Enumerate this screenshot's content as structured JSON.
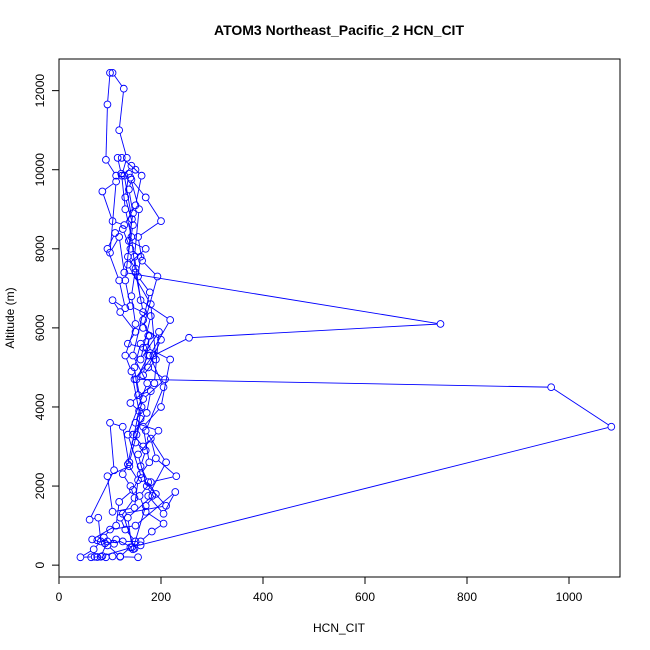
{
  "chart_data": {
    "type": "line",
    "title": "ATOM3 Northeast_Pacific_2 HCN_CIT",
    "xlabel": "HCN_CIT",
    "ylabel": "Altitude (m)",
    "xlim": [
      0,
      1100
    ],
    "ylim": [
      -300,
      12800
    ],
    "x_ticks": [
      0,
      200,
      400,
      600,
      800,
      1000
    ],
    "y_ticks": [
      0,
      2000,
      4000,
      6000,
      8000,
      10000,
      12000
    ],
    "grid": false,
    "legend": "none",
    "marker": "open-circle",
    "color": "#0000ff",
    "series": [
      {
        "points": [
          [
            155,
            200
          ],
          [
            120,
            210
          ],
          [
            105,
            220
          ],
          [
            92,
            200
          ],
          [
            75,
            205
          ],
          [
            63,
            200
          ],
          [
            82,
            210
          ],
          [
            95,
            600
          ],
          [
            112,
            650
          ],
          [
            148,
            420
          ],
          [
            125,
            1300
          ],
          [
            210,
            1500
          ],
          [
            162,
            2200
          ],
          [
            135,
            3300
          ],
          [
            173,
            4600
          ],
          [
            145,
            5300
          ],
          [
            165,
            6400
          ],
          [
            150,
            7400
          ],
          [
            142,
            8300
          ],
          [
            130,
            9000
          ],
          [
            123,
            9850
          ],
          [
            133,
            10300
          ],
          [
            118,
            11000
          ],
          [
            127,
            12050
          ],
          [
            105,
            12450
          ],
          [
            100,
            12450
          ],
          [
            95,
            11650
          ],
          [
            92,
            10250
          ],
          [
            112,
            9850
          ],
          [
            140,
            9800
          ],
          [
            157,
            9000
          ],
          [
            148,
            7800
          ],
          [
            160,
            6700
          ],
          [
            218,
            6200
          ],
          [
            178,
            5300
          ],
          [
            205,
            4500
          ],
          [
            170,
            3400
          ],
          [
            210,
            2600
          ],
          [
            175,
            1750
          ],
          [
            205,
            1300
          ],
          [
            228,
            1850
          ],
          [
            150,
            1000
          ],
          [
            100,
            900
          ],
          [
            88,
            700
          ],
          [
            75,
            630
          ],
          [
            108,
            540
          ],
          [
            95,
            500
          ],
          [
            120,
            220
          ],
          [
            140,
            450
          ],
          [
            1083,
            3500
          ],
          [
            965,
            4500
          ],
          [
            148,
            4700
          ],
          [
            185,
            5300
          ],
          [
            255,
            5750
          ],
          [
            748,
            6100
          ],
          [
            128,
            7400
          ],
          [
            118,
            8300
          ],
          [
            100,
            7900
          ],
          [
            112,
            9700
          ],
          [
            85,
            9450
          ],
          [
            105,
            8700
          ],
          [
            128,
            8600
          ],
          [
            150,
            9100
          ],
          [
            162,
            9850
          ],
          [
            142,
            10100
          ],
          [
            128,
            9850
          ],
          [
            143,
            8750
          ],
          [
            130,
            7200
          ],
          [
            140,
            6550
          ],
          [
            180,
            6300
          ],
          [
            160,
            5200
          ],
          [
            196,
            5900
          ],
          [
            187,
            4600
          ],
          [
            140,
            4100
          ],
          [
            157,
            3900
          ],
          [
            135,
            2550
          ],
          [
            155,
            2150
          ],
          [
            148,
            1450
          ],
          [
            105,
            1350
          ],
          [
            95,
            2250
          ],
          [
            138,
            2500
          ],
          [
            125,
            3500
          ],
          [
            100,
            3600
          ],
          [
            108,
            2400
          ],
          [
            60,
            1150
          ],
          [
            77,
            1200
          ],
          [
            82,
            600
          ],
          [
            68,
            400
          ],
          [
            42,
            200
          ],
          [
            70,
            210
          ],
          [
            85,
            230
          ],
          [
            143,
            450
          ],
          [
            135,
            1200
          ],
          [
            183,
            1750
          ],
          [
            172,
            2000
          ],
          [
            155,
            2800
          ],
          [
            195,
            3400
          ],
          [
            150,
            3600
          ],
          [
            165,
            4200
          ],
          [
            208,
            4700
          ],
          [
            175,
            5000
          ],
          [
            200,
            5700
          ],
          [
            165,
            6000
          ],
          [
            193,
            7300
          ],
          [
            163,
            7700
          ],
          [
            155,
            8300
          ],
          [
            200,
            8700
          ],
          [
            170,
            9300
          ],
          [
            142,
            9750
          ],
          [
            137,
            9500
          ],
          [
            145,
            8900
          ],
          [
            137,
            8200
          ],
          [
            170,
            8000
          ],
          [
            135,
            7600
          ],
          [
            180,
            6600
          ],
          [
            190,
            5200
          ],
          [
            165,
            4800
          ],
          [
            178,
            5800
          ],
          [
            172,
            5500
          ],
          [
            218,
            5200
          ],
          [
            200,
            4000
          ],
          [
            165,
            3500
          ],
          [
            177,
            2600
          ],
          [
            160,
            2300
          ],
          [
            145,
            1900
          ],
          [
            118,
            1600
          ],
          [
            112,
            1000
          ],
          [
            65,
            650
          ],
          [
            90,
            550
          ],
          [
            125,
            600
          ],
          [
            160,
            600
          ],
          [
            182,
            850
          ],
          [
            205,
            1050
          ],
          [
            170,
            1350
          ],
          [
            158,
            1750
          ],
          [
            180,
            2100
          ],
          [
            230,
            2250
          ],
          [
            190,
            2700
          ],
          [
            180,
            3200
          ],
          [
            165,
            3000
          ],
          [
            145,
            3300
          ],
          [
            172,
            3850
          ],
          [
            180,
            4400
          ],
          [
            155,
            4300
          ],
          [
            148,
            5000
          ],
          [
            160,
            5600
          ],
          [
            175,
            5800
          ],
          [
            165,
            6200
          ],
          [
            178,
            6900
          ],
          [
            155,
            7300
          ],
          [
            160,
            7800
          ],
          [
            140,
            8000
          ],
          [
            125,
            8500
          ],
          [
            110,
            8400
          ],
          [
            95,
            8000
          ],
          [
            118,
            7200
          ],
          [
            130,
            6500
          ],
          [
            105,
            6700
          ],
          [
            120,
            6400
          ],
          [
            150,
            5900
          ],
          [
            135,
            5600
          ],
          [
            165,
            5500
          ],
          [
            175,
            5300
          ],
          [
            152,
            4700
          ],
          [
            162,
            4000
          ],
          [
            152,
            3300
          ],
          [
            138,
            2600
          ],
          [
            125,
            2300
          ],
          [
            140,
            2000
          ],
          [
            148,
            1700
          ],
          [
            120,
            1200
          ],
          [
            130,
            900
          ],
          [
            150,
            600
          ],
          [
            160,
            500
          ],
          [
            145,
            400
          ],
          [
            170,
            1500
          ],
          [
            190,
            1800
          ],
          [
            175,
            2100
          ],
          [
            160,
            2500
          ],
          [
            170,
            2900
          ],
          [
            150,
            3100
          ],
          [
            160,
            3700
          ],
          [
            142,
            4900
          ],
          [
            130,
            5300
          ],
          [
            150,
            6100
          ],
          [
            142,
            6800
          ],
          [
            150,
            7500
          ],
          [
            135,
            7800
          ],
          [
            145,
            8600
          ],
          [
            130,
            9300
          ],
          [
            137,
            9900
          ],
          [
            150,
            10000
          ],
          [
            123,
            10300
          ],
          [
            115,
            10300
          ],
          [
            122,
            9900
          ]
        ]
      }
    ]
  }
}
